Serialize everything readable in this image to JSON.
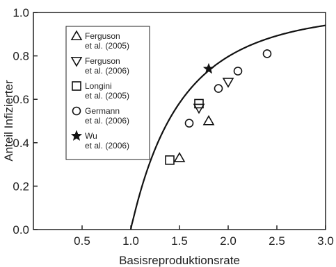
{
  "chart_data": {
    "type": "scatter",
    "xlabel": "Basisreproduktionsrate",
    "ylabel": "Anteil Infizierter",
    "xlim": [
      0,
      3.0
    ],
    "ylim": [
      0,
      1.0
    ],
    "x_ticks": [
      0.5,
      1.0,
      1.5,
      2.0,
      2.5,
      3.0
    ],
    "x_tick_labels": [
      "0.5",
      "1.0",
      "1.5",
      "2.0",
      "2.5",
      "3.0"
    ],
    "y_ticks": [
      0.0,
      0.2,
      0.4,
      0.6,
      0.8,
      1.0
    ],
    "y_tick_labels": [
      "0.0",
      "0.2",
      "0.4",
      "0.6",
      "0.8",
      "1.0"
    ],
    "grid": false,
    "legend_position": "top-left",
    "series": [
      {
        "name": "Ferguson et al. (2005)",
        "line1": "Ferguson",
        "line2": "et al. (2005)",
        "marker": "triangle-up-open",
        "points": [
          {
            "x": 1.5,
            "y": 0.33
          },
          {
            "x": 1.8,
            "y": 0.5
          }
        ]
      },
      {
        "name": "Ferguson et al. (2006)",
        "line1": "Ferguson",
        "line2": "et al. (2006)",
        "marker": "triangle-down-open",
        "points": [
          {
            "x": 1.7,
            "y": 0.56
          },
          {
            "x": 2.0,
            "y": 0.68
          }
        ]
      },
      {
        "name": "Longini et al. (2005)",
        "line1": "Longini",
        "line2": "et al. (2005)",
        "marker": "square-open",
        "points": [
          {
            "x": 1.4,
            "y": 0.32
          },
          {
            "x": 1.7,
            "y": 0.58
          }
        ]
      },
      {
        "name": "Germann et al. (2006)",
        "line1": "Germann",
        "line2": "et al. (2006)",
        "marker": "circle-open",
        "points": [
          {
            "x": 1.6,
            "y": 0.49
          },
          {
            "x": 1.9,
            "y": 0.65
          },
          {
            "x": 2.1,
            "y": 0.73
          },
          {
            "x": 2.4,
            "y": 0.81
          }
        ]
      },
      {
        "name": "Wu et al. (2006)",
        "line1": "Wu",
        "line2": "et al. (2006)",
        "marker": "star-filled",
        "points": [
          {
            "x": 1.8,
            "y": 0.74
          }
        ]
      }
    ],
    "curve": {
      "type": "final-size-epidemic",
      "x_start": 1.0,
      "x_end": 3.0
    }
  }
}
